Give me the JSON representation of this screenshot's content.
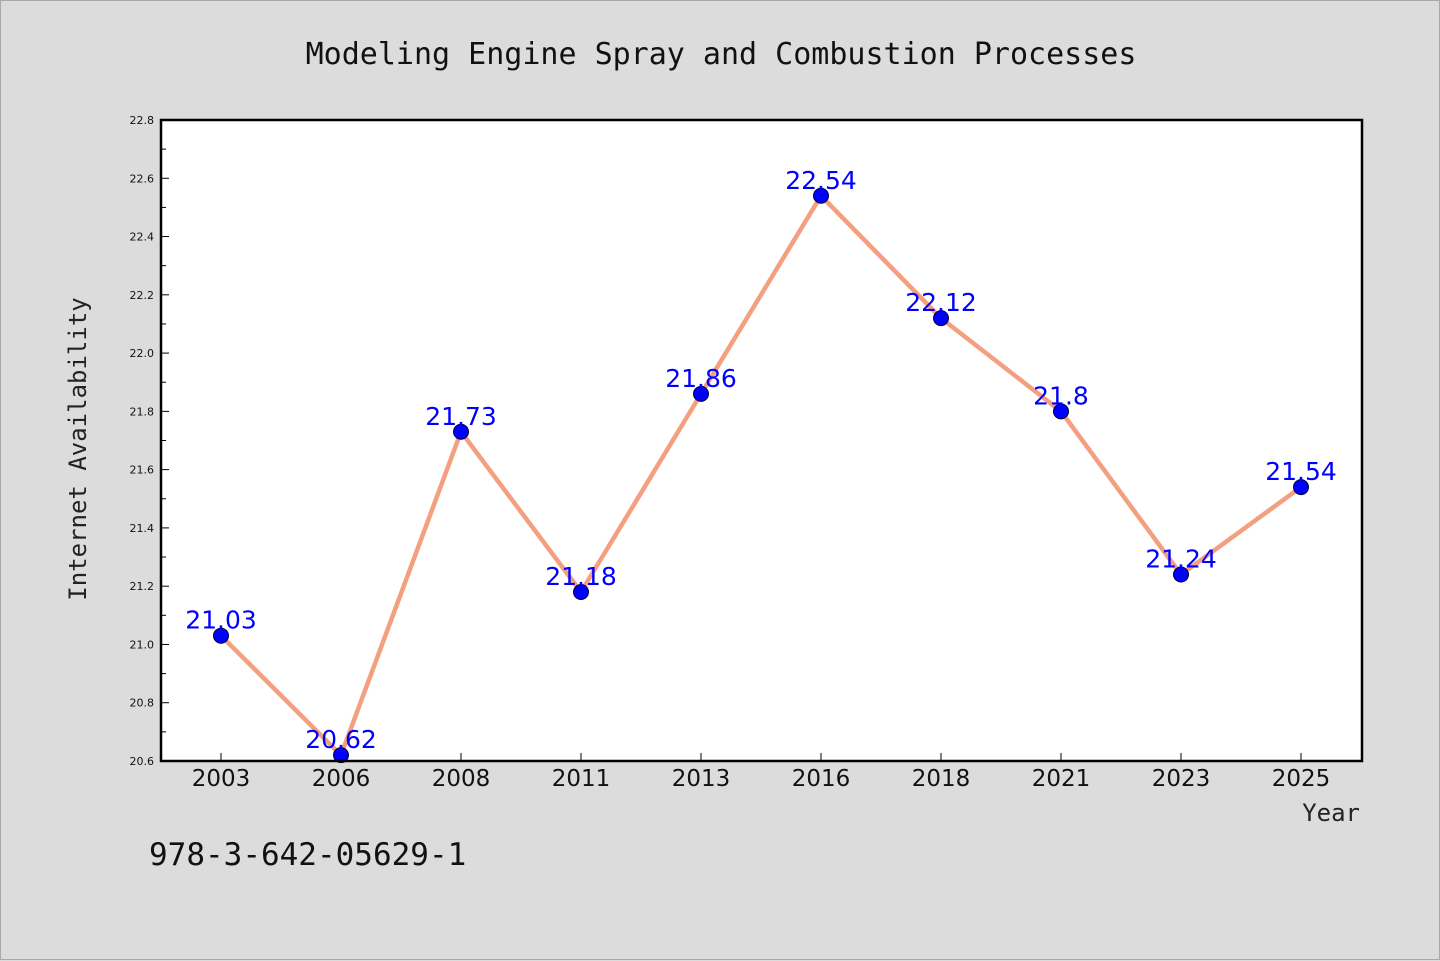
{
  "chart_data": {
    "type": "line",
    "title": "Modeling Engine Spray and Combustion Processes",
    "xlabel": "Year",
    "ylabel": "Internet Availability",
    "categories": [
      "2003",
      "2006",
      "2008",
      "2011",
      "2013",
      "2016",
      "2018",
      "2021",
      "2023",
      "2025"
    ],
    "series": [
      {
        "values": [
          21.03,
          20.62,
          21.73,
          21.18,
          21.86,
          22.54,
          22.12,
          21.8,
          21.24,
          21.54
        ],
        "data_labels": [
          "21.03",
          "20.62",
          "21.73",
          "21.18",
          "21.86",
          "22.54",
          "22.12",
          "21.8",
          "21.24",
          "21.54"
        ]
      }
    ],
    "ylim": [
      20.6,
      22.8
    ],
    "yticks": [
      "20.6",
      "20.8",
      "21.0",
      "21.2",
      "21.4",
      "21.6",
      "21.8",
      "22.0",
      "22.2",
      "22.4",
      "22.6",
      "22.8"
    ],
    "grid": false,
    "colors": {
      "line": "#f4a080",
      "marker": "#0000ff",
      "label": "#0000ff",
      "plot_bg": "#ffffff",
      "page_bg": "#dcdcdc"
    }
  },
  "footnote": "978-3-642-05629-1"
}
